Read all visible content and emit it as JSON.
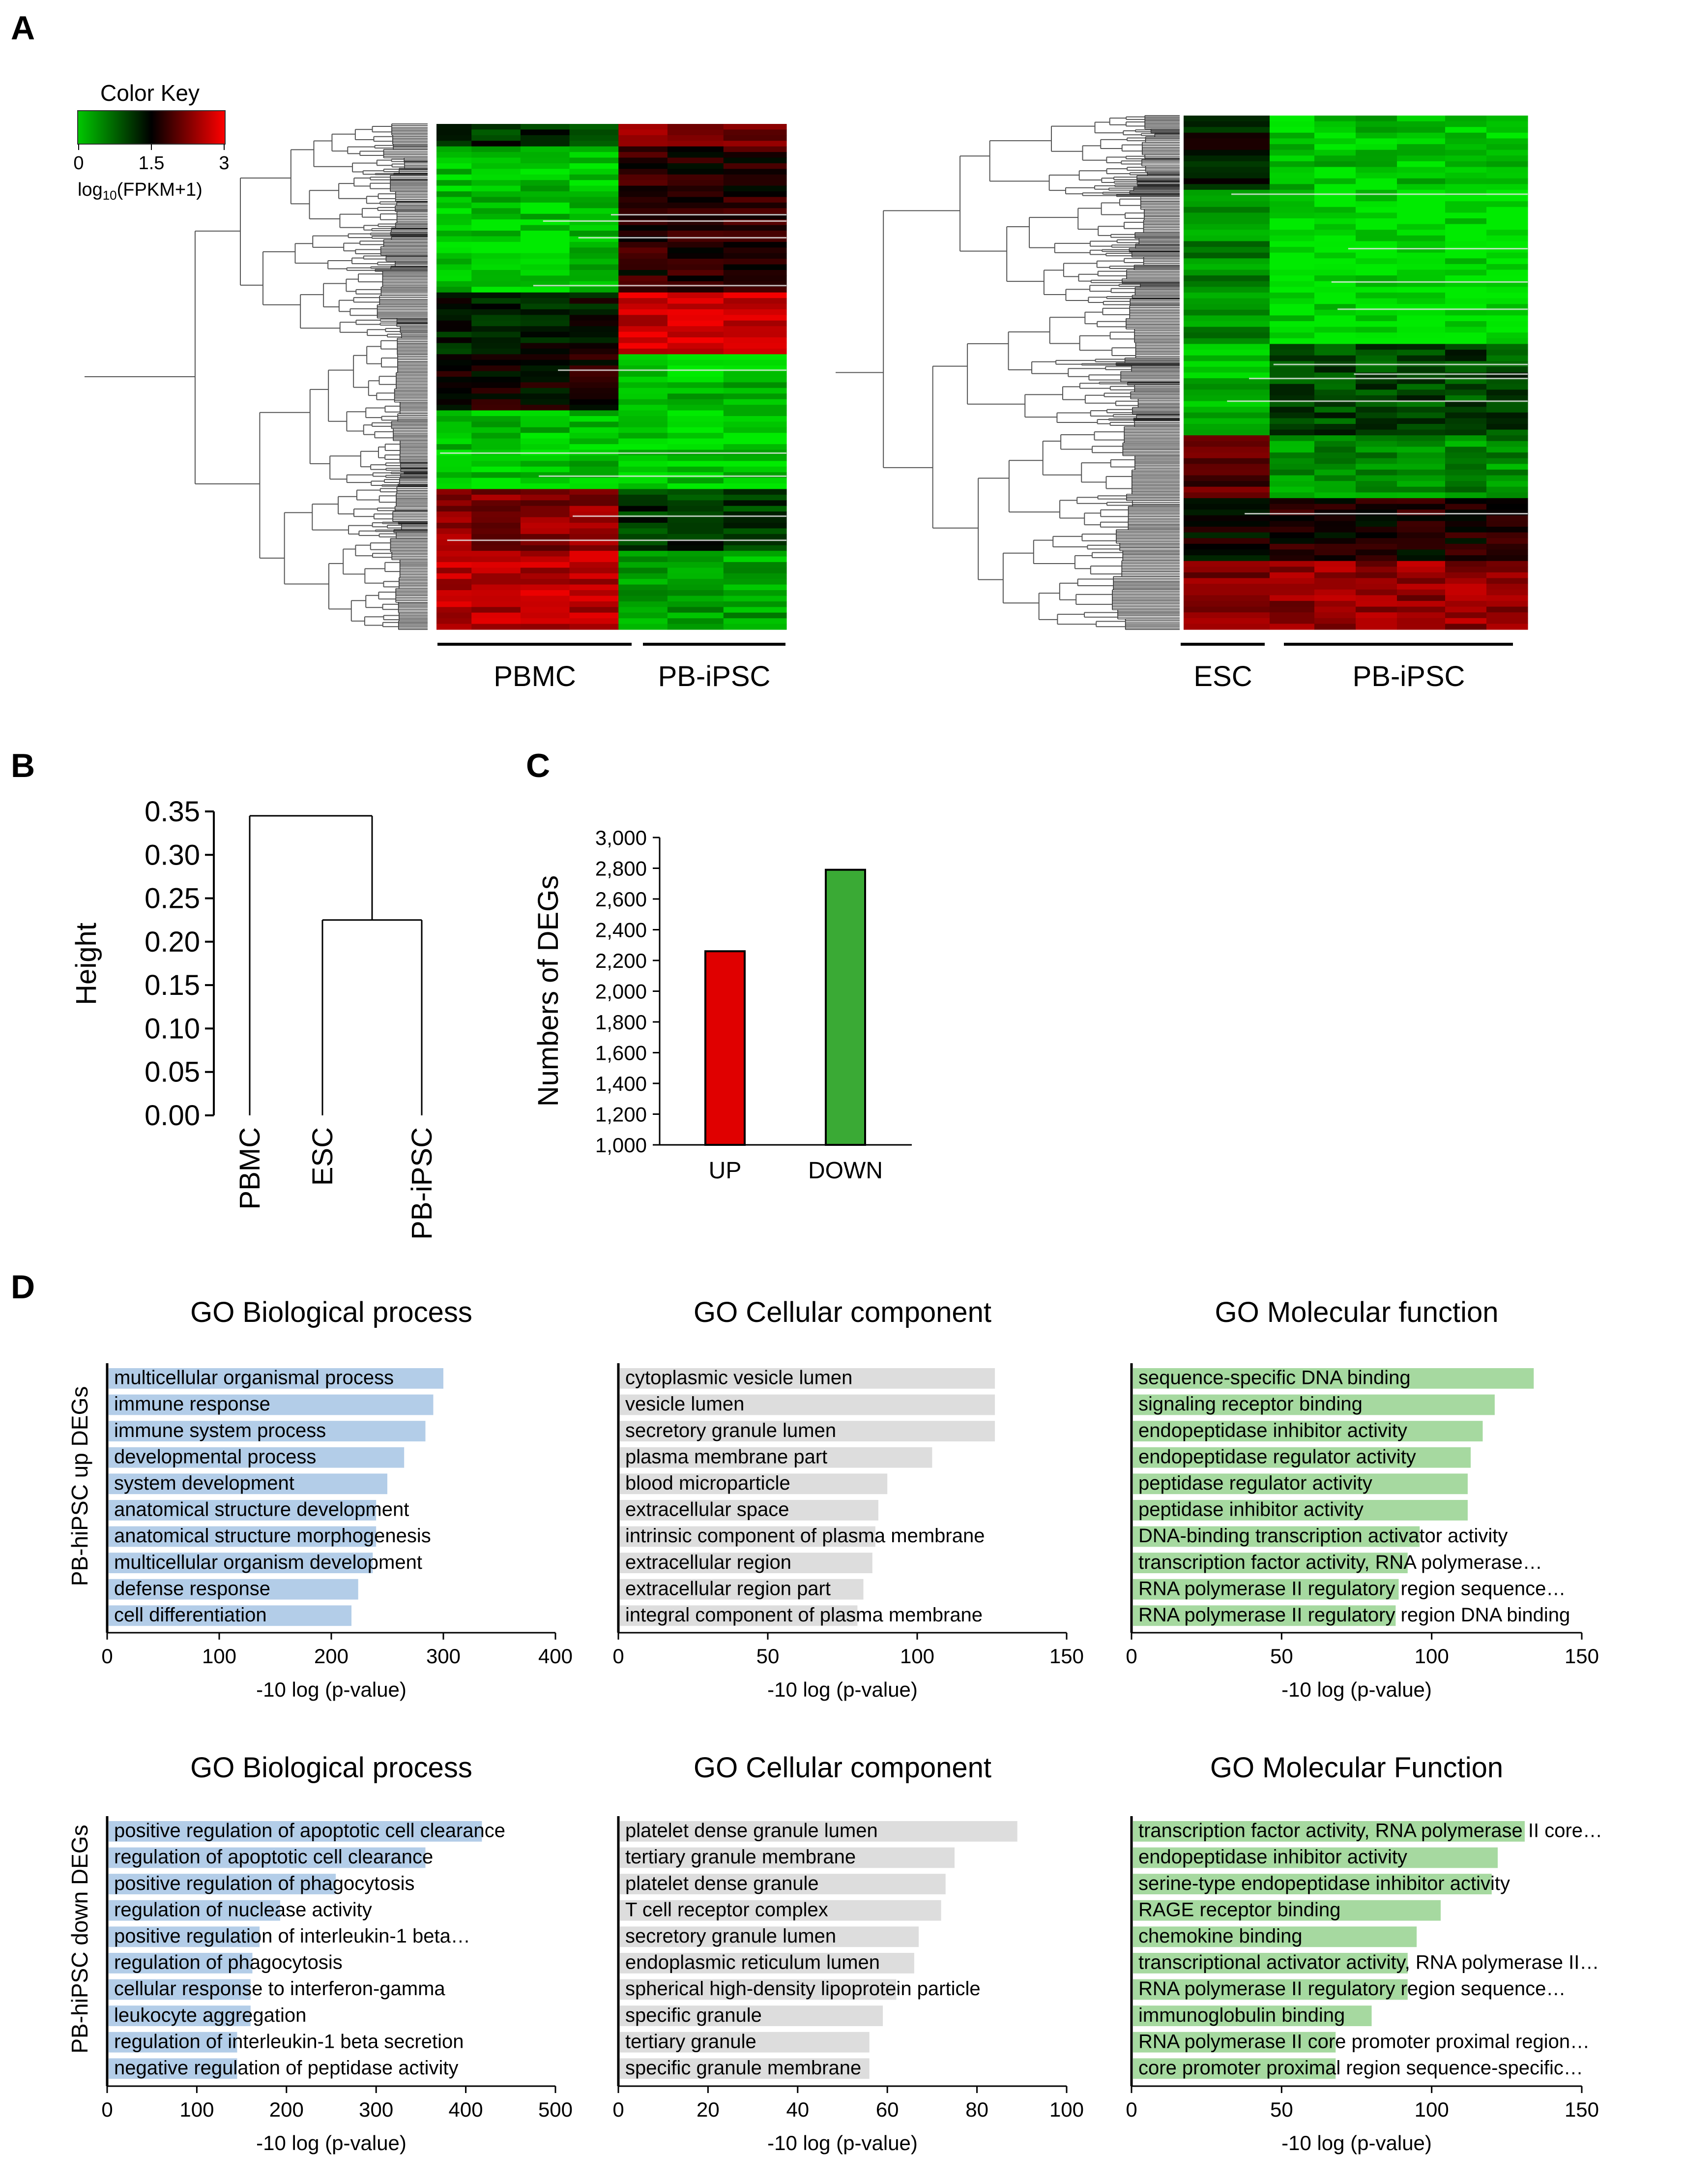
{
  "panels": {
    "A": "A",
    "B": "B",
    "C": "C",
    "D": "D"
  },
  "panel_a": {
    "color_key": {
      "title": "Color Key",
      "ticks": [
        "0",
        "1.5",
        "3"
      ],
      "label_main": "log",
      "label_sub": "10",
      "label_rest": "(FPKM+1)",
      "colors": [
        "#00c800",
        "#000000",
        "#ff0000"
      ]
    },
    "left_heatmap": {
      "groups": [
        "PBMC",
        "PB-iPSC"
      ]
    },
    "right_heatmap": {
      "groups": [
        "ESC",
        "PB-iPSC"
      ]
    }
  },
  "chart_data": [
    {
      "id": "B",
      "type": "dendrogram",
      "ylabel": "Height",
      "yticks": [
        "0.00",
        "0.05",
        "0.10",
        "0.15",
        "0.20",
        "0.25",
        "0.30",
        "0.35"
      ],
      "ylim": [
        0,
        0.35
      ],
      "leaves": [
        "PBMC",
        "ESC",
        "PB-iPSC"
      ],
      "merges": [
        {
          "members": [
            "ESC",
            "PB-iPSC"
          ],
          "height": 0.225
        },
        {
          "members": [
            "PBMC",
            "ESC+PB-iPSC"
          ],
          "height": 0.345
        }
      ]
    },
    {
      "id": "C",
      "type": "bar",
      "ylabel": "Numbers of DEGs",
      "categories": [
        "UP",
        "DOWN"
      ],
      "values": [
        2260,
        2790
      ],
      "colors": [
        "#e00000",
        "#3aaa35"
      ],
      "yticks": [
        "1,000",
        "1,200",
        "1,400",
        "1,600",
        "1,800",
        "2,000",
        "2,200",
        "2,400",
        "2,600",
        "2,800",
        "3,000"
      ],
      "ylim": [
        1000,
        3000
      ]
    },
    {
      "id": "D-up-bp",
      "type": "bar",
      "orientation": "horizontal",
      "title": "GO Biological process",
      "xlabel": "-10 log (p-value)",
      "row_label": "PB-hiPSC up DEGs",
      "color": "#b3cde8",
      "xlim": [
        0,
        400
      ],
      "xticks": [
        "0",
        "100",
        "200",
        "300",
        "400"
      ],
      "categories": [
        "multicellular organismal process",
        "immune response",
        "immune system process",
        "developmental process",
        "system development",
        "anatomical structure development",
        "anatomical structure morphogenesis",
        "multicellular organism development",
        "defense response",
        "cell differentiation"
      ],
      "values": [
        300,
        291,
        284,
        265,
        250,
        240,
        240,
        237,
        224,
        218
      ]
    },
    {
      "id": "D-up-cc",
      "type": "bar",
      "orientation": "horizontal",
      "title": "GO Cellular component",
      "xlabel": "-10 log (p-value)",
      "color": "#dddddd",
      "xlim": [
        0,
        150
      ],
      "xticks": [
        "0",
        "50",
        "100",
        "150"
      ],
      "categories": [
        "cytoplasmic vesicle lumen",
        "vesicle lumen",
        "secretory granule lumen",
        "plasma membrane part",
        "blood microparticle",
        "extracellular space",
        "intrinsic component of plasma membrane",
        "extracellular region",
        "extracellular region part",
        "integral component of plasma membrane"
      ],
      "values": [
        126,
        126,
        126,
        105,
        90,
        87,
        86,
        85,
        82,
        80
      ]
    },
    {
      "id": "D-up-mf",
      "type": "bar",
      "orientation": "horizontal",
      "title": "GO Molecular function",
      "xlabel": "-10 log (p-value)",
      "color": "#a6d9a0",
      "xlim": [
        0,
        150
      ],
      "xticks": [
        "0",
        "50",
        "100",
        "150"
      ],
      "categories": [
        "sequence-specific DNA binding",
        "signaling receptor binding",
        "endopeptidase  inhibitor activity",
        "endopeptidase  regulator activity",
        "peptidase regulator activity",
        "peptidase inhibitor activity",
        "DNA-binding transcription activator activity",
        "transcription factor activity, RNA polymerase…",
        "RNA polymerase II regulatory region sequence…",
        "RNA polymerase II regulatory region DNA binding"
      ],
      "values": [
        134,
        121,
        117,
        113,
        112,
        112,
        96,
        92,
        89,
        88
      ]
    },
    {
      "id": "D-down-bp",
      "type": "bar",
      "orientation": "horizontal",
      "title": "GO Biological process",
      "xlabel": "-10 log (p-value)",
      "row_label": "PB-hiPSC down DEGs",
      "color": "#b3cde8",
      "xlim": [
        0,
        500
      ],
      "xticks": [
        "0",
        "100",
        "200",
        "300",
        "400",
        "500"
      ],
      "categories": [
        "positive regulation of apoptotic cell clearance",
        "regulation of apoptotic cell clearance",
        "positive regulation of phagocytosis",
        "regulation of nuclease activity",
        "positive regulation of interleukin-1 beta…",
        "regulation of phagocytosis",
        "cellular response to interferon-gamma",
        "leukocyte aggregation",
        "regulation of interleukin-1 beta secretion",
        "negative regulation of peptidase activity"
      ],
      "values": [
        418,
        355,
        255,
        193,
        170,
        162,
        160,
        160,
        145,
        145
      ]
    },
    {
      "id": "D-down-cc",
      "type": "bar",
      "orientation": "horizontal",
      "title": "GO Cellular component",
      "xlabel": "-10 log (p-value)",
      "color": "#dddddd",
      "xlim": [
        0,
        100
      ],
      "xticks": [
        "0",
        "20",
        "40",
        "60",
        "80",
        "100"
      ],
      "categories": [
        "platelet  dense granule lumen",
        "tertiary granule membrane",
        "platelet  dense granule",
        "T cell receptor complex",
        "secretory granule lumen",
        "endoplasmic  reticulum lumen",
        "spherical high-density lipoprotein particle",
        "specific granule",
        "tertiary granule",
        "specific granule membrane"
      ],
      "values": [
        89,
        75,
        73,
        72,
        67,
        66,
        62,
        59,
        56,
        56
      ]
    },
    {
      "id": "D-down-mf",
      "type": "bar",
      "orientation": "horizontal",
      "title": "GO Molecular Function",
      "xlabel": "-10 log (p-value)",
      "color": "#a6d9a0",
      "xlim": [
        0,
        150
      ],
      "xticks": [
        "0",
        "50",
        "100",
        "150"
      ],
      "categories": [
        "transcription factor activity, RNA polymerase II core…",
        "endopeptidase  inhibitor activity",
        "serine-type endopeptidase  inhibitor activity",
        "RAGE  receptor binding",
        "chemokine  binding",
        "transcriptional activator activity, RNA polymerase II…",
        "RNA polymerase II regulatory region sequence…",
        "immunoglobulin  binding",
        "RNA polymerase II core promoter proximal region…",
        "core promoter proximal region sequence-specific…"
      ],
      "values": [
        131,
        122,
        120,
        103,
        95,
        92,
        92,
        80,
        68,
        68
      ]
    }
  ]
}
